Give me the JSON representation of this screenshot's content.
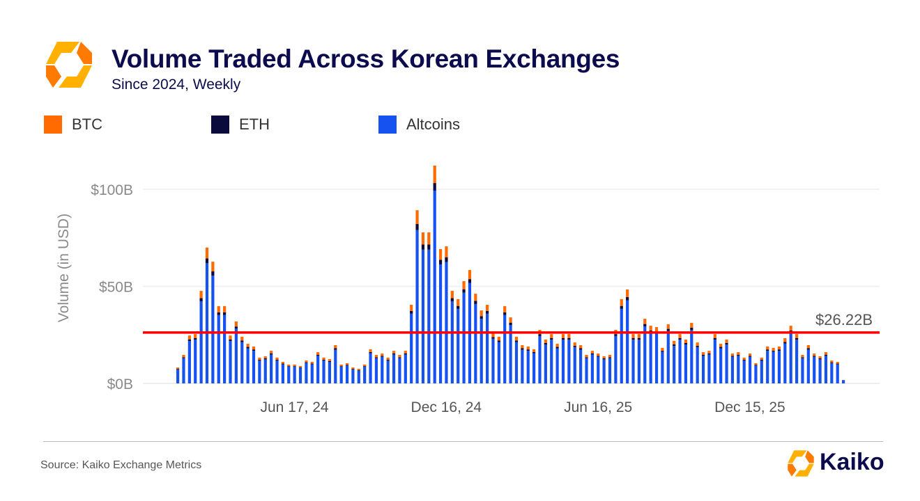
{
  "header": {
    "title": "Volume Traded Across Korean Exchanges",
    "subtitle": "Since 2024, Weekly"
  },
  "footer": {
    "source": "Source: Kaiko Exchange Metrics",
    "brand": "Kaiko"
  },
  "colors": {
    "btc": "#ff6b00",
    "eth": "#0a0a3c",
    "altcoins": "#1652f0",
    "average_line": "#ff0000",
    "brand_orange": "#ff8c00",
    "title": "#0b0b4d"
  },
  "chart_data": {
    "type": "bar",
    "stacked": true,
    "title": "Volume Traded Across Korean Exchanges",
    "subtitle": "Since 2024, Weekly",
    "ylabel": "Volume (in USD)",
    "xlabel": "",
    "ylim": [
      0,
      120
    ],
    "yticks": [
      0,
      50,
      100
    ],
    "ytick_labels": [
      "$0B",
      "$50B",
      "$100B"
    ],
    "xtick_labels": [
      {
        "date": "2024-06-17",
        "label": "Jun 17, 24"
      },
      {
        "date": "2024-12-16",
        "label": "Dec 16, 24"
      },
      {
        "date": "2025-06-16",
        "label": "Jun 16, 25"
      },
      {
        "date": "2025-12-15",
        "label": "Dec 15, 25"
      }
    ],
    "grid": "horizontal",
    "legend": "top-left",
    "average_line": {
      "value": 26.22,
      "label": "$26.22B"
    },
    "x": [
      "2024-01-29",
      "2024-02-05",
      "2024-02-12",
      "2024-02-19",
      "2024-02-26",
      "2024-03-04",
      "2024-03-11",
      "2024-03-18",
      "2024-03-25",
      "2024-04-01",
      "2024-04-08",
      "2024-04-15",
      "2024-04-22",
      "2024-04-29",
      "2024-05-06",
      "2024-05-13",
      "2024-05-20",
      "2024-05-27",
      "2024-06-03",
      "2024-06-10",
      "2024-06-17",
      "2024-06-24",
      "2024-07-01",
      "2024-07-08",
      "2024-07-15",
      "2024-07-22",
      "2024-07-29",
      "2024-08-05",
      "2024-08-12",
      "2024-08-19",
      "2024-08-26",
      "2024-09-02",
      "2024-09-09",
      "2024-09-16",
      "2024-09-23",
      "2024-09-30",
      "2024-10-07",
      "2024-10-14",
      "2024-10-21",
      "2024-10-28",
      "2024-11-04",
      "2024-11-11",
      "2024-11-18",
      "2024-11-25",
      "2024-12-02",
      "2024-12-09",
      "2024-12-16",
      "2024-12-23",
      "2024-12-30",
      "2025-01-06",
      "2025-01-13",
      "2025-01-20",
      "2025-01-27",
      "2025-02-03",
      "2025-02-10",
      "2025-02-17",
      "2025-02-24",
      "2025-03-03",
      "2025-03-10",
      "2025-03-17",
      "2025-03-24",
      "2025-03-31",
      "2025-04-07",
      "2025-04-14",
      "2025-04-21",
      "2025-04-28",
      "2025-05-05",
      "2025-05-12",
      "2025-05-19",
      "2025-05-26",
      "2025-06-02",
      "2025-06-09",
      "2025-06-16",
      "2025-06-23",
      "2025-06-30",
      "2025-07-07",
      "2025-07-14",
      "2025-07-21",
      "2025-07-28",
      "2025-08-04",
      "2025-08-11",
      "2025-08-18",
      "2025-08-25",
      "2025-09-01",
      "2025-09-08",
      "2025-09-15",
      "2025-09-22",
      "2025-09-29",
      "2025-10-06",
      "2025-10-13",
      "2025-10-20",
      "2025-10-27",
      "2025-11-03",
      "2025-11-10",
      "2025-11-17",
      "2025-11-24",
      "2025-12-01",
      "2025-12-08",
      "2025-12-15",
      "2025-12-22",
      "2025-12-29",
      "2026-01-05",
      "2026-01-12",
      "2026-01-19",
      "2026-01-26",
      "2026-02-02",
      "2026-02-09",
      "2026-02-16",
      "2026-02-23",
      "2026-03-02",
      "2026-03-09",
      "2026-03-16",
      "2026-03-23",
      "2026-03-30",
      "2026-04-06"
    ],
    "series": [
      {
        "name": "Altcoins",
        "values": [
          7.2,
          13.0,
          21.8,
          22.5,
          42.2,
          61.9,
          55.5,
          35.2,
          35.2,
          21.8,
          28.2,
          21.3,
          18.1,
          16.8,
          11.7,
          12.4,
          14.9,
          11.7,
          9.8,
          8.6,
          8.6,
          8.0,
          10.5,
          9.8,
          14.2,
          11.7,
          11.1,
          17.4,
          8.6,
          9.2,
          7.2,
          6.6,
          8.6,
          15.6,
          13.0,
          13.7,
          11.7,
          14.9,
          13.0,
          14.9,
          35.9,
          79.0,
          68.9,
          68.9,
          99.3,
          61.3,
          62.5,
          42.2,
          38.4,
          46.7,
          51.7,
          40.9,
          33.3,
          35.9,
          23.0,
          21.3,
          35.2,
          30.1,
          21.3,
          17.4,
          16.8,
          15.6,
          24.4,
          20.0,
          22.5,
          18.1,
          22.5,
          22.5,
          18.7,
          17.4,
          13.0,
          14.9,
          13.7,
          12.4,
          13.0,
          24.4,
          38.4,
          42.8,
          22.5,
          22.5,
          29.4,
          26.3,
          25.7,
          16.2,
          27.0,
          19.3,
          22.5,
          20.0,
          27.6,
          18.7,
          14.2,
          14.9,
          22.5,
          18.1,
          20.0,
          13.7,
          14.2,
          11.7,
          13.7,
          9.2,
          11.7,
          16.8,
          16.2,
          16.8,
          20.6,
          26.3,
          22.5,
          13.0,
          17.4,
          13.7,
          12.4,
          14.2,
          10.5,
          9.8,
          1.6
        ]
      },
      {
        "name": "ETH",
        "values": [
          0.3,
          0.5,
          0.9,
          0.9,
          1.7,
          2.5,
          2.2,
          1.4,
          1.4,
          0.9,
          1.1,
          0.8,
          0.7,
          0.7,
          0.5,
          0.5,
          0.6,
          0.5,
          0.4,
          0.3,
          0.3,
          0.3,
          0.4,
          0.4,
          0.6,
          0.5,
          0.4,
          0.7,
          0.3,
          0.4,
          0.3,
          0.3,
          0.3,
          0.6,
          0.5,
          0.5,
          0.5,
          0.6,
          0.5,
          0.6,
          1.4,
          3.1,
          2.7,
          2.7,
          3.9,
          2.4,
          2.5,
          1.7,
          1.5,
          1.8,
          2.0,
          1.6,
          1.3,
          1.4,
          0.9,
          0.8,
          1.4,
          1.2,
          0.8,
          0.7,
          0.7,
          0.6,
          1.0,
          0.8,
          0.9,
          0.7,
          0.9,
          0.9,
          0.7,
          0.7,
          0.5,
          0.6,
          0.5,
          0.5,
          0.5,
          1.0,
          1.5,
          1.7,
          0.9,
          0.9,
          1.2,
          1.0,
          1.0,
          0.6,
          1.1,
          0.8,
          0.9,
          0.8,
          1.1,
          0.7,
          0.6,
          0.6,
          0.9,
          0.7,
          0.8,
          0.5,
          0.6,
          0.5,
          0.5,
          0.4,
          0.5,
          0.7,
          0.6,
          0.7,
          0.8,
          1.0,
          0.9,
          0.5,
          0.7,
          0.5,
          0.5,
          0.6,
          0.4,
          0.4,
          0.1
        ]
      },
      {
        "name": "BTC",
        "values": [
          0.7,
          1.2,
          2.0,
          2.0,
          3.8,
          5.6,
          5.0,
          3.2,
          3.2,
          2.0,
          2.6,
          1.9,
          1.6,
          1.5,
          1.1,
          1.1,
          1.3,
          1.1,
          0.9,
          0.8,
          0.8,
          0.7,
          0.9,
          0.9,
          1.3,
          1.1,
          1.0,
          1.6,
          0.8,
          0.8,
          0.7,
          0.6,
          0.8,
          1.4,
          1.2,
          1.2,
          1.1,
          1.3,
          1.2,
          1.3,
          3.2,
          7.1,
          6.2,
          6.2,
          9.0,
          5.5,
          5.6,
          3.8,
          3.5,
          4.2,
          4.7,
          3.7,
          3.0,
          3.2,
          2.1,
          1.9,
          3.2,
          2.7,
          1.9,
          1.6,
          1.5,
          1.4,
          2.2,
          1.8,
          2.0,
          1.6,
          2.0,
          2.0,
          1.7,
          1.6,
          1.2,
          1.3,
          1.2,
          1.1,
          1.2,
          2.2,
          3.5,
          3.9,
          2.0,
          2.0,
          2.7,
          2.4,
          2.3,
          1.5,
          2.4,
          1.8,
          2.0,
          1.8,
          2.5,
          1.7,
          1.3,
          1.3,
          2.0,
          1.6,
          1.8,
          1.2,
          1.3,
          1.1,
          1.2,
          0.8,
          1.1,
          1.5,
          1.5,
          1.5,
          1.9,
          2.4,
          2.0,
          1.2,
          1.6,
          1.2,
          1.1,
          1.3,
          0.9,
          0.9,
          0.1
        ]
      }
    ]
  }
}
